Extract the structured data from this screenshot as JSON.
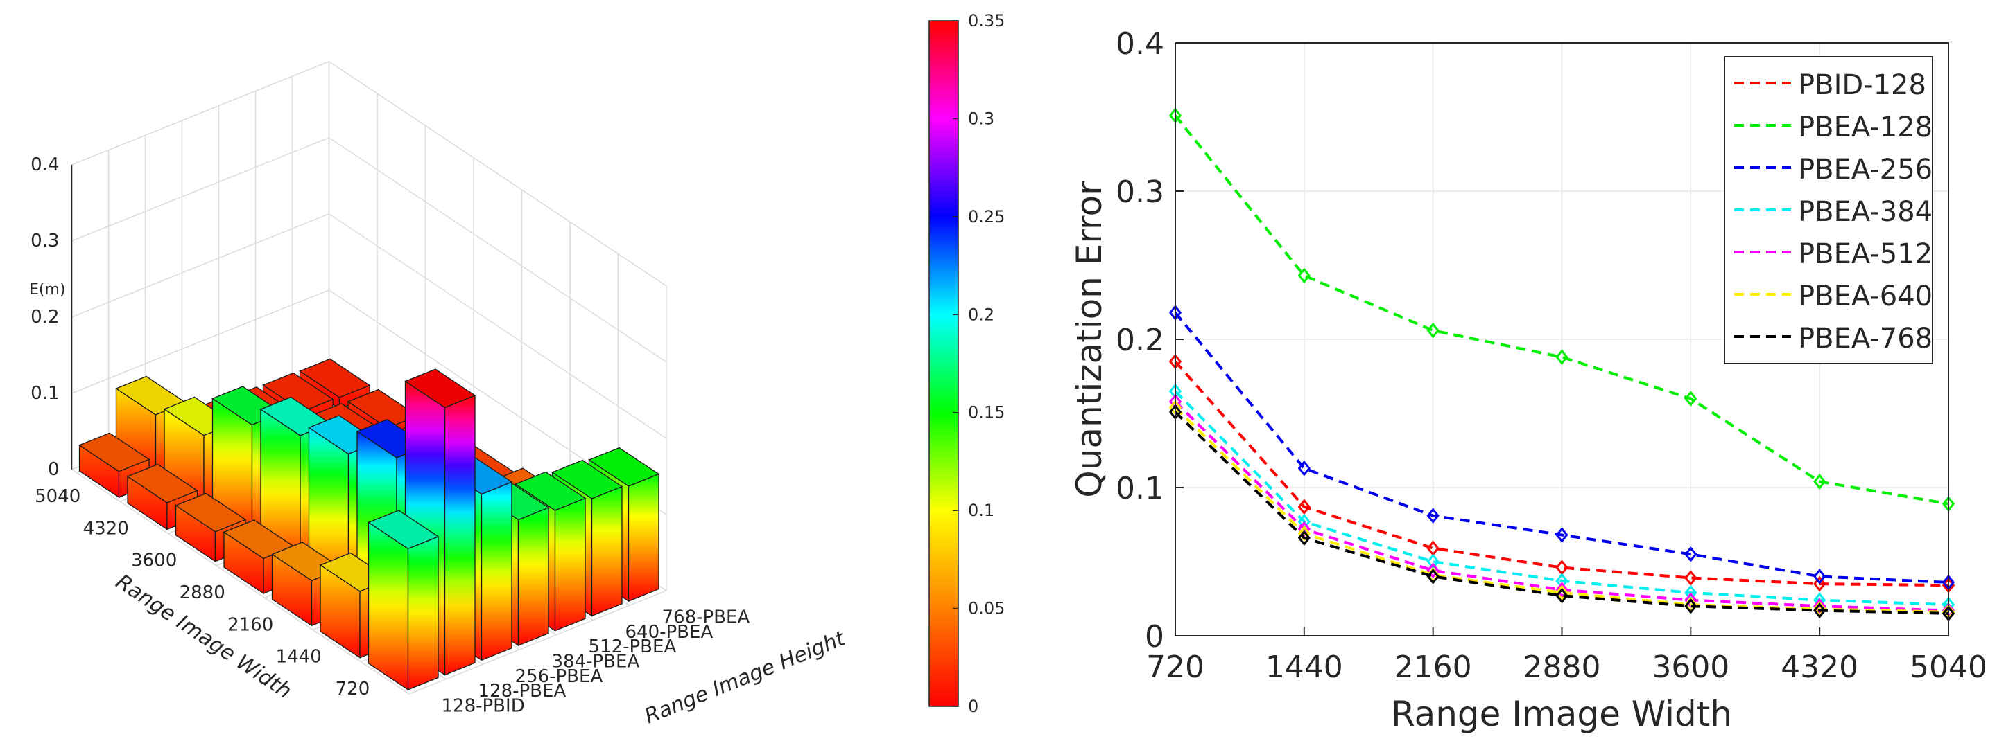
{
  "chart_data": [
    {
      "type": "bar3d",
      "title": "",
      "zlabel": "E(m)",
      "xlabel": "Range Image Width",
      "ylabel": "Range Image Height",
      "x_categories": [
        "720",
        "1440",
        "2160",
        "2880",
        "3600",
        "4320",
        "5040"
      ],
      "y_categories": [
        "128-PBID",
        "128-PBEA",
        "256-PBEA",
        "384-PBEA",
        "512-PBEA",
        "640-PBEA",
        "768-PBEA"
      ],
      "z_ticks": [
        "0",
        "0.1",
        "0.2",
        "0.3",
        "0.4"
      ],
      "zlim": [
        0,
        0.4
      ],
      "values": [
        [
          0.185,
          0.351,
          0.218,
          0.165,
          0.158,
          0.154,
          0.151
        ],
        [
          0.087,
          0.243,
          0.113,
          0.077,
          0.072,
          0.069,
          0.066
        ],
        [
          0.059,
          0.206,
          0.081,
          0.05,
          0.044,
          0.041,
          0.04
        ],
        [
          0.046,
          0.188,
          0.068,
          0.037,
          0.031,
          0.029,
          0.027
        ],
        [
          0.039,
          0.16,
          0.055,
          0.029,
          0.024,
          0.021,
          0.02
        ],
        [
          0.035,
          0.104,
          0.04,
          0.024,
          0.02,
          0.018,
          0.017
        ],
        [
          0.034,
          0.089,
          0.036,
          0.021,
          0.017,
          0.016,
          0.015
        ]
      ],
      "colorbar": {
        "ticks": [
          "0",
          "0.05",
          "0.1",
          "0.15",
          "0.2",
          "0.25",
          "0.3",
          "0.35"
        ],
        "range": [
          0,
          0.35
        ],
        "stops": [
          "#ff0000",
          "#ff8000",
          "#ffff00",
          "#00ff00",
          "#00ffff",
          "#0000ff",
          "#ff00ff",
          "#ff0000"
        ]
      },
      "grid": true
    },
    {
      "type": "line",
      "title": "",
      "xlabel": "Range Image Width",
      "ylabel": "Quantization Error",
      "x": [
        720,
        1440,
        2160,
        2880,
        3600,
        4320,
        5040
      ],
      "x_ticks": [
        "720",
        "1440",
        "2160",
        "2880",
        "3600",
        "4320",
        "5040"
      ],
      "y_ticks": [
        "0",
        "0.1",
        "0.2",
        "0.3",
        "0.4"
      ],
      "ylim": [
        0,
        0.4
      ],
      "grid": true,
      "legend_position": "top-right",
      "series": [
        {
          "name": "PBID-128",
          "color": "#ff0000",
          "values": [
            0.185,
            0.087,
            0.059,
            0.046,
            0.039,
            0.035,
            0.034
          ]
        },
        {
          "name": "PBEA-128",
          "color": "#00ee00",
          "values": [
            0.351,
            0.243,
            0.206,
            0.188,
            0.16,
            0.104,
            0.089
          ]
        },
        {
          "name": "PBEA-256",
          "color": "#0000ee",
          "values": [
            0.218,
            0.113,
            0.081,
            0.068,
            0.055,
            0.04,
            0.036
          ]
        },
        {
          "name": "PBEA-384",
          "color": "#00eeee",
          "values": [
            0.165,
            0.077,
            0.05,
            0.037,
            0.029,
            0.024,
            0.021
          ]
        },
        {
          "name": "PBEA-512",
          "color": "#ff00ff",
          "values": [
            0.158,
            0.072,
            0.044,
            0.031,
            0.024,
            0.02,
            0.017
          ]
        },
        {
          "name": "PBEA-640",
          "color": "#ffee00",
          "values": [
            0.154,
            0.069,
            0.041,
            0.029,
            0.021,
            0.018,
            0.016
          ]
        },
        {
          "name": "PBEA-768",
          "color": "#000000",
          "values": [
            0.151,
            0.066,
            0.04,
            0.027,
            0.02,
            0.017,
            0.015
          ]
        }
      ]
    }
  ]
}
